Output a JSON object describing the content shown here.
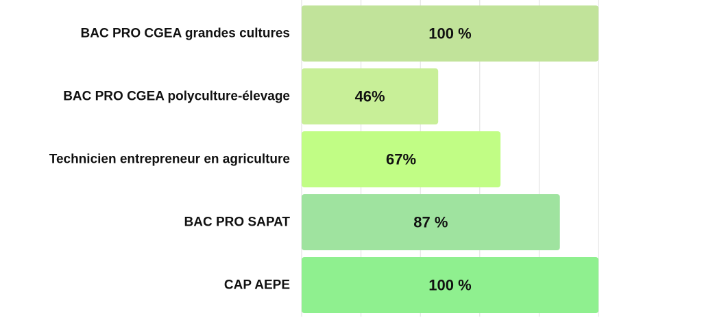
{
  "chart_data": {
    "type": "bar",
    "orientation": "horizontal",
    "categories": [
      "BAC PRO CGEA grandes cultures",
      "BAC PRO CGEA polyculture-élevage",
      "Technicien entrepreneur en agriculture",
      "BAC PRO SAPAT",
      "CAP AEPE"
    ],
    "values": [
      100,
      46,
      67,
      87,
      100
    ],
    "data_labels": [
      "100 %",
      "46%",
      "67%",
      "87 %",
      "100 %"
    ],
    "bar_colors": [
      "#c1e39a",
      "#c8ef98",
      "#c1fd85",
      "#9fe39f",
      "#8ff08f"
    ],
    "xlim": [
      0,
      100
    ],
    "grid": true,
    "grid_color": "#dedede",
    "label_color": "#111111"
  }
}
